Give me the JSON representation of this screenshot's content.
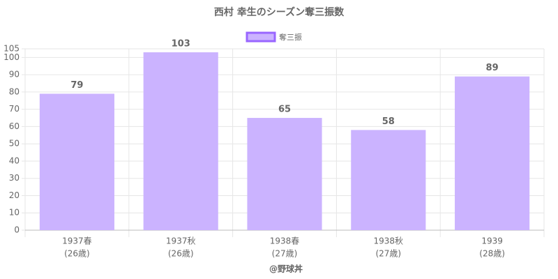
{
  "chart_data": {
    "type": "bar",
    "title": "西村 幸生のシーズン奪三振数",
    "categories": [
      [
        "1937春",
        "(26歳)"
      ],
      [
        "1937秋",
        "(26歳)"
      ],
      [
        "1938春",
        "(27歳)"
      ],
      [
        "1938秋",
        "(27歳)"
      ],
      [
        "1939",
        "(28歳)"
      ]
    ],
    "series": [
      {
        "name": "奪三振",
        "color": "#cbb3ff",
        "border_color": "#9966ff",
        "values": [
          79,
          103,
          65,
          58,
          89
        ]
      }
    ],
    "ylim": [
      0,
      105
    ],
    "yticks": [
      0,
      10,
      20,
      30,
      40,
      50,
      60,
      70,
      80,
      90,
      100,
      105
    ],
    "grid": true,
    "credit": "@野球丼"
  }
}
